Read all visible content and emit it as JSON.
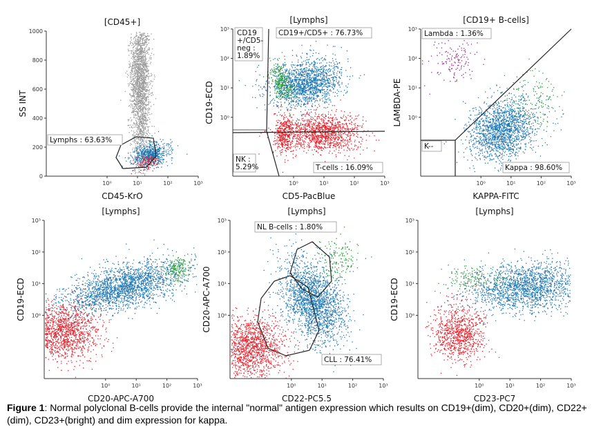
{
  "figure": {
    "caption_label": "Figure 1",
    "caption_text": ": Normal polyclonal B-cells provide the internal \"normal\" antigen expression which results on CD19+(dim), CD20+(dim), CD22+(dim), CD23+(bright) and dim expression for kappa."
  },
  "colors": {
    "lymphs_blue": "#1f77b4",
    "tcells_red": "#e8202a",
    "debris_gray": "#9a9a9a",
    "lambda_magenta": "#a02090",
    "kappa_green": "#2a9a3a",
    "gate_line": "#222222"
  },
  "chart_data": [
    {
      "type": "scatter",
      "title": "[CD45+]",
      "xlabel": "CD45-KrO",
      "ylabel": "SS INT",
      "xscale": "log",
      "xlim": [
        0.01,
        1000
      ],
      "yscale": "linear",
      "ylim": [
        0,
        1000
      ],
      "xticks": [
        "10⁰",
        "10¹",
        "10²",
        "10³"
      ],
      "yticks": [
        "0",
        "200",
        "400",
        "600",
        "800",
        "1000"
      ],
      "populations": [
        {
          "color": "gray",
          "x_center": 12,
          "y_center": 650,
          "spread": "vertical streak"
        },
        {
          "color": "blue",
          "x_center": 25,
          "y_center": 150
        },
        {
          "color": "red",
          "x_center": 20,
          "y_center": 100
        }
      ],
      "gates": [
        {
          "label": "Lymphs : 63.63%"
        }
      ]
    },
    {
      "type": "scatter",
      "title": "[Lymphs]",
      "xlabel": "CD5-PacBlue",
      "ylabel": "CD19-ECD",
      "xscale": "log",
      "yscale": "log",
      "xlim": [
        0.01,
        1000
      ],
      "ylim": [
        0.01,
        1000
      ],
      "xticks": [
        "10⁰",
        "10¹",
        "10²",
        "10³"
      ],
      "yticks": [
        "10⁰",
        "10¹",
        "10²",
        "10³"
      ],
      "populations": [
        {
          "color": "blue",
          "x_center": 2.5,
          "y_center": 15
        },
        {
          "color": "red",
          "x_center": 8,
          "y_center": 0.3
        },
        {
          "color": "red",
          "x_center": 0.5,
          "y_center": 0.3
        },
        {
          "color": "green",
          "x_center": 0.4,
          "y_center": 15
        }
      ],
      "gates": [
        {
          "label": "CD19 +/CD5- neg : 1.89%"
        },
        {
          "label": "CD19+/CD5+ : 76.73%"
        },
        {
          "label": "NK : 5.29%"
        },
        {
          "label": "T-cells : 16.09%"
        }
      ]
    },
    {
      "type": "scatter",
      "title": "[CD19+ B-cells]",
      "xlabel": "KAPPA-FITC",
      "ylabel": "LAMBDA-PE",
      "xscale": "log",
      "yscale": "log",
      "xlim": [
        0.01,
        1000
      ],
      "ylim": [
        0.01,
        1000
      ],
      "xticks": [
        "10⁰",
        "10¹",
        "10²",
        "10³"
      ],
      "yticks": [
        "10⁰",
        "10¹",
        "10²",
        "10³"
      ],
      "populations": [
        {
          "color": "blue",
          "x_center": 5,
          "y_center": 0.4
        },
        {
          "color": "magenta",
          "x_center": 0.15,
          "y_center": 100
        },
        {
          "color": "green",
          "x_center": 60,
          "y_center": 5
        }
      ],
      "gates": [
        {
          "label": "Lambda : 1.36%"
        },
        {
          "label": "K--"
        },
        {
          "label": "Kappa : 98.60%"
        }
      ]
    },
    {
      "type": "scatter",
      "title": "[Lymphs]",
      "xlabel": "CD20-APC-A700",
      "ylabel": "CD19-ECD",
      "xscale": "log",
      "yscale": "log",
      "xlim": [
        0.01,
        1000
      ],
      "ylim": [
        0.01,
        1000
      ],
      "xticks": [
        "10⁰",
        "10¹",
        "10²",
        "10³"
      ],
      "yticks": [
        "10⁰",
        "10¹",
        "10²",
        "10³"
      ],
      "populations": [
        {
          "color": "blue",
          "x_center": 4,
          "y_center": 8
        },
        {
          "color": "red",
          "x_center": 0.04,
          "y_center": 0.3
        },
        {
          "color": "green",
          "x_center": 200,
          "y_center": 30
        }
      ],
      "gates": []
    },
    {
      "type": "scatter",
      "title": "[Lymphs]",
      "xlabel": "CD22-PC5.5",
      "ylabel": "CD20-APC-A700",
      "xscale": "log",
      "yscale": "log",
      "xlim": [
        0.01,
        1000
      ],
      "ylim": [
        0.01,
        1000
      ],
      "xticks": [
        "10⁰",
        "10¹",
        "10²",
        "10³"
      ],
      "yticks": [
        "10⁰",
        "10¹",
        "10²",
        "10³"
      ],
      "populations": [
        {
          "color": "blue",
          "x_center": 5,
          "y_center": 3
        },
        {
          "color": "red",
          "x_center": 0.05,
          "y_center": 0.1
        },
        {
          "color": "green",
          "x_center": 30,
          "y_center": 60
        }
      ],
      "gates": [
        {
          "label": "NL B-cells : 1.80%"
        },
        {
          "label": "CLL : 76.41%"
        }
      ]
    },
    {
      "type": "scatter",
      "title": "[Lymphs]",
      "xlabel": "CD23-PC7",
      "ylabel": "CD19-ECD",
      "xscale": "log",
      "yscale": "log",
      "xlim": [
        0.01,
        1000
      ],
      "ylim": [
        0.01,
        1000
      ],
      "xticks": [
        "10⁰",
        "10¹",
        "10²",
        "10³"
      ],
      "yticks": [
        "10⁰",
        "10¹",
        "10²",
        "10³"
      ],
      "populations": [
        {
          "color": "blue",
          "x_center": 30,
          "y_center": 8
        },
        {
          "color": "red",
          "x_center": 0.2,
          "y_center": 0.3
        },
        {
          "color": "green",
          "x_center": 0.5,
          "y_center": 15
        }
      ],
      "gates": []
    }
  ]
}
